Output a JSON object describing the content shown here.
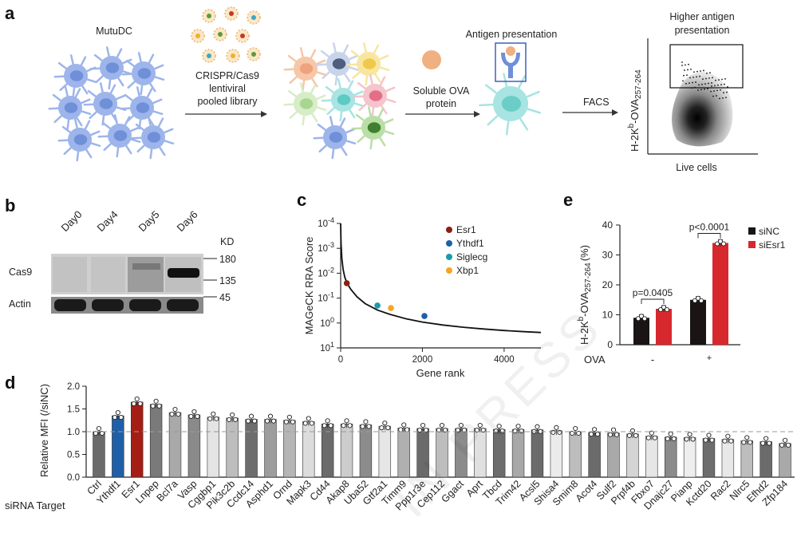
{
  "panels": {
    "a": "a",
    "b": "b",
    "c": "c",
    "d": "d",
    "e": "e"
  },
  "watermark": "IN PRESS",
  "panel_a": {
    "mutudc": "MutuDC",
    "library_line1": "CRISPR/Cas9",
    "library_line2": "lentiviral",
    "library_line3": "pooled library",
    "antigen_presentation": "Antigen presentation",
    "ova_line1": "Soluble OVA",
    "ova_line2": "protein",
    "facs": "FACS",
    "higher_line1": "Higher antigen",
    "higher_line2": "presentation",
    "yaxis_main": "H-2K",
    "yaxis_sup": "b",
    "yaxis_mid": "-OVA",
    "yaxis_sub": "257-264",
    "xaxis": "Live cells",
    "colors": {
      "cell": "#9DB5EA",
      "nucleus": "#6F8FD8",
      "green": "#5A9B42",
      "cyan": "#A7E4E2",
      "orange": "#F0B081"
    }
  },
  "panel_b": {
    "days": [
      "Day0",
      "Day4",
      "Day5",
      "Day6"
    ],
    "kd_label": "KD",
    "markers": [
      "180",
      "135",
      "45"
    ],
    "rows": [
      "Cas9",
      "Actin"
    ]
  },
  "chart_data": [
    {
      "id": "c",
      "type": "line",
      "xlabel": "Gene rank",
      "ylabel": "MAGeCK RRA Score",
      "y_scale": "log-reversed",
      "x_ticks": [
        0,
        2000,
        4000
      ],
      "x_range": [
        0,
        4900
      ],
      "y_ticks": [
        {
          "base": "10",
          "exp": "-4"
        },
        {
          "base": "10",
          "exp": "-3"
        },
        {
          "base": "10",
          "exp": "-2"
        },
        {
          "base": "10",
          "exp": "-1"
        },
        {
          "base": "10",
          "exp": "0"
        },
        {
          "base": "10",
          "exp": "1"
        }
      ],
      "y_range": [
        -4,
        1
      ],
      "curve": [
        [
          0,
          -4
        ],
        [
          10,
          -3.2
        ],
        [
          30,
          -2.6
        ],
        [
          60,
          -2.15
        ],
        [
          100,
          -1.85
        ],
        [
          150,
          -1.62
        ],
        [
          250,
          -1.35
        ],
        [
          400,
          -1.05
        ],
        [
          600,
          -0.78
        ],
        [
          900,
          -0.52
        ],
        [
          1200,
          -0.35
        ],
        [
          1600,
          -0.17
        ],
        [
          2000,
          -0.04
        ],
        [
          2500,
          0.08
        ],
        [
          3000,
          0.17
        ],
        [
          3500,
          0.24
        ],
        [
          4000,
          0.3
        ],
        [
          4500,
          0.35
        ],
        [
          4900,
          0.38
        ]
      ],
      "highlights": [
        {
          "name": "Esr1",
          "x": 150,
          "y": -1.6,
          "color": "#8B1F15"
        },
        {
          "name": "Ythdf1",
          "x": 2050,
          "y": -0.28,
          "color": "#1F5FA8"
        },
        {
          "name": "Siglecg",
          "x": 900,
          "y": -0.7,
          "color": "#1E9AA8"
        },
        {
          "name": "Xbp1",
          "x": 1230,
          "y": -0.6,
          "color": "#F5A623"
        }
      ]
    },
    {
      "id": "d",
      "type": "bar",
      "ylabel": "Relative MFI (/siNC)",
      "y_ticks": [
        "0.0",
        "0.5",
        "1.0",
        "1.5",
        "2.0"
      ],
      "ylim": [
        0,
        2.0
      ],
      "xlabel": "siRNA Target",
      "reference_line": 1.0,
      "categories": [
        "Ctrl",
        "Ythdf1",
        "Esr1",
        "Lnpep",
        "Bcl7a",
        "Vasp",
        "Cggbp1",
        "Pik3c2b",
        "Ccdc14",
        "Asphd1",
        "Ornd",
        "Mapk3",
        "Cd44",
        "Akap8",
        "Uba52",
        "Gtf2a1",
        "Timm9",
        "Ppp1r3e",
        "Cep112",
        "Ggact",
        "Aprt",
        "Tbcd",
        "Trim42",
        "Acsl5",
        "Shisa4",
        "Smim8",
        "Acot4",
        "Sulf2",
        "Prpf4b",
        "Fbxo7",
        "Dnajc27",
        "Pianp",
        "Kctd20",
        "Rac2",
        "Nlrc5",
        "Efhd2",
        "Zfp184"
      ],
      "values": [
        1.0,
        1.35,
        1.65,
        1.6,
        1.42,
        1.37,
        1.32,
        1.3,
        1.27,
        1.27,
        1.25,
        1.22,
        1.17,
        1.17,
        1.15,
        1.12,
        1.08,
        1.07,
        1.07,
        1.07,
        1.07,
        1.05,
        1.05,
        1.04,
        1.02,
        1.0,
        0.98,
        0.97,
        0.95,
        0.9,
        0.88,
        0.87,
        0.85,
        0.83,
        0.8,
        0.78,
        0.74
      ],
      "colors": [
        "#6b6b6b",
        "#1F5FA8",
        "#A41E15",
        "#7a7a7a",
        "#a9a9a9",
        "#8a8a8a",
        "#e4e4e4",
        "#bdbdbd",
        "#6d6d6d",
        "#9d9d9d",
        "#b5b5b5",
        "#dcdcdc",
        "#6b6b6b",
        "#cccccc",
        "#8c8c8c",
        "#e6e6e6",
        "#b0b0b0",
        "#6b6b6b",
        "#bdbdbd",
        "#8b8b8b",
        "#e0e0e0",
        "#6d6d6d",
        "#a8a8a8",
        "#6b6b6b",
        "#ebebeb",
        "#bdbdbd",
        "#6b6b6b",
        "#a9a9a9",
        "#d4d4d4",
        "#e6e6e6",
        "#8b8b8b",
        "#eeeeee",
        "#6d6d6d",
        "#e8e8e8",
        "#bdbdbd",
        "#6b6b6b",
        "#a9a9a9"
      ]
    },
    {
      "id": "e",
      "type": "bar",
      "ylabel_main": "H-2K",
      "ylabel_sup": "b",
      "ylabel_mid": "-OVA",
      "ylabel_sub": "257-264",
      "ylabel_tail": "(%)",
      "y_ticks": [
        "0",
        "10",
        "20",
        "30",
        "40"
      ],
      "ylim": [
        0,
        40
      ],
      "xlabel": "OVA",
      "groups": [
        "-",
        "+"
      ],
      "series": [
        {
          "name": "siNC",
          "values": [
            9,
            15
          ],
          "color": "#1a1414"
        },
        {
          "name": "siEsr1",
          "values": [
            12,
            34
          ],
          "color": "#D7282E"
        }
      ],
      "pvalues": [
        "p=0.0405",
        "p<0.0001"
      ]
    }
  ]
}
